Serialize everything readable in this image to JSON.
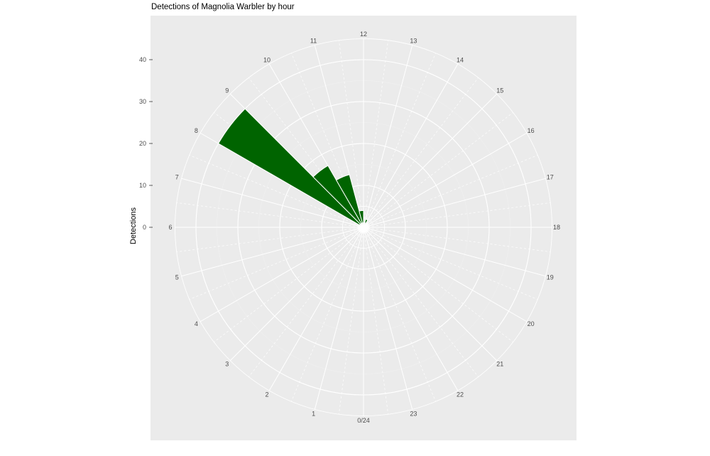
{
  "chart_data": {
    "type": "bar",
    "coordinate_system": "polar",
    "title": "Detections of Magnolia Warbler by hour",
    "ylabel": "Detections",
    "xlabel": "",
    "theta_layout": "hour 0/24 at bottom, hours increase clockwise, 6 at left, 12 at top, 18 at right",
    "bin_width_hours": 1,
    "hour_labels": [
      "0/24",
      "1",
      "2",
      "3",
      "4",
      "5",
      "6",
      "7",
      "8",
      "9",
      "10",
      "11",
      "12",
      "13",
      "14",
      "15",
      "16",
      "17",
      "18",
      "19",
      "20",
      "21",
      "22",
      "23"
    ],
    "values_by_hour": [
      0,
      0,
      0,
      0,
      0,
      0,
      0,
      0,
      40,
      17,
      13,
      4,
      0,
      2,
      0,
      0,
      0,
      0,
      0,
      0,
      0,
      0,
      0,
      0
    ],
    "r_ticks": [
      0,
      10,
      20,
      30,
      40
    ],
    "r_minor_ticks": [
      5,
      15,
      25,
      35,
      45
    ],
    "r_axis_max": 45,
    "grid": true,
    "legend": "none",
    "colors": {
      "bar": "#006400",
      "panel_bg": "#EBEBEB",
      "grid": "#FFFFFF",
      "axis_text": "#4D4D4D",
      "title_text": "#000000",
      "tick_mark": "#333333",
      "background": "#FFFFFF"
    }
  }
}
